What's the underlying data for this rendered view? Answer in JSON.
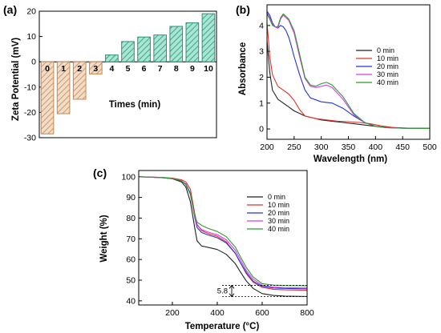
{
  "chart_data": [
    {
      "panel": "(a)",
      "type": "bar",
      "ylabel": "Zeta Potential (mV)",
      "xlabel": "Times (min)",
      "ylim": [
        -30,
        20
      ],
      "yticks": [
        -30,
        -20,
        -10,
        0,
        10,
        20
      ],
      "categories": [
        "0",
        "1",
        "2",
        "3",
        "4",
        "5",
        "6",
        "7",
        "8",
        "9",
        "10"
      ],
      "values": [
        -28.5,
        -20.5,
        -14.8,
        -4.8,
        2.7,
        8.0,
        9.8,
        10.6,
        14.0,
        15.4,
        19.0
      ],
      "colors": {
        "negative": "#c9874f",
        "negative_fill": "#f1dcc7",
        "positive": "#2f8f78",
        "positive_fill": "#a8e6d4"
      }
    },
    {
      "panel": "(b)",
      "type": "line",
      "xlabel": "Wavelength (nm)",
      "ylabel": "Absorbance",
      "xlim": [
        200,
        500
      ],
      "ylim": [
        -0.4,
        4.8
      ],
      "xticks": [
        200,
        250,
        300,
        350,
        400,
        450,
        500
      ],
      "yticks": [
        0,
        1,
        2,
        3,
        4
      ],
      "legend_position": "right",
      "series": [
        {
          "name": "0 min",
          "color": "#222222",
          "x": [
            200,
            205,
            210,
            220,
            230,
            240,
            250,
            270,
            300,
            320,
            340,
            360,
            380,
            400,
            420,
            450,
            500
          ],
          "y": [
            3.4,
            2.2,
            1.5,
            1.15,
            1.0,
            0.85,
            0.7,
            0.5,
            0.35,
            0.3,
            0.25,
            0.2,
            0.15,
            0.1,
            0.06,
            0.03,
            0.02
          ]
        },
        {
          "name": "10 min",
          "color": "#e8312a",
          "x": [
            200,
            202,
            205,
            210,
            220,
            230,
            240,
            250,
            260,
            270,
            290,
            310,
            330,
            350,
            370,
            390,
            410,
            430,
            460,
            500
          ],
          "y": [
            4.1,
            3.6,
            2.8,
            2.1,
            1.65,
            1.5,
            1.35,
            1.1,
            0.75,
            0.5,
            0.4,
            0.35,
            0.3,
            0.28,
            0.25,
            0.2,
            0.12,
            0.06,
            0.03,
            0.02
          ]
        },
        {
          "name": "20 min",
          "color": "#2233dd",
          "x": [
            200,
            205,
            210,
            215,
            220,
            225,
            230,
            235,
            240,
            245,
            250,
            260,
            270,
            280,
            300,
            320,
            340,
            360,
            380,
            400,
            420,
            450,
            500
          ],
          "y": [
            4.55,
            4.4,
            4.1,
            3.95,
            3.9,
            4.0,
            3.95,
            3.8,
            3.55,
            3.2,
            2.8,
            2.1,
            1.5,
            1.2,
            1.05,
            1.0,
            0.8,
            0.5,
            0.25,
            0.1,
            0.05,
            0.03,
            0.02
          ]
        },
        {
          "name": "30 min",
          "color": "#d63ee6",
          "x": [
            200,
            205,
            210,
            215,
            220,
            225,
            230,
            235,
            240,
            250,
            260,
            270,
            280,
            290,
            300,
            310,
            320,
            340,
            360,
            380,
            400,
            420,
            450,
            500
          ],
          "y": [
            4.5,
            4.3,
            4.05,
            3.95,
            3.9,
            4.25,
            4.4,
            4.3,
            4.2,
            3.7,
            2.8,
            1.95,
            1.65,
            1.6,
            1.65,
            1.7,
            1.6,
            1.15,
            0.55,
            0.25,
            0.1,
            0.05,
            0.03,
            0.02
          ]
        },
        {
          "name": "40 min",
          "color": "#2e9a2e",
          "x": [
            200,
            205,
            210,
            215,
            220,
            225,
            230,
            235,
            240,
            250,
            260,
            270,
            280,
            290,
            300,
            310,
            320,
            340,
            360,
            380,
            400,
            420,
            450,
            500
          ],
          "y": [
            4.45,
            4.25,
            4.0,
            3.95,
            3.95,
            4.3,
            4.45,
            4.35,
            4.25,
            3.8,
            2.9,
            2.0,
            1.7,
            1.65,
            1.75,
            1.8,
            1.7,
            1.25,
            0.6,
            0.25,
            0.1,
            0.05,
            0.03,
            0.02
          ]
        }
      ]
    },
    {
      "panel": "(c)",
      "type": "line",
      "xlabel": "Temperature (°C)",
      "ylabel": "Weight (%)",
      "xlim": [
        50,
        800
      ],
      "ylim": [
        38,
        103
      ],
      "xticks": [
        200,
        400,
        600,
        800
      ],
      "yticks": [
        40,
        50,
        60,
        70,
        80,
        90,
        100
      ],
      "legend_position": "right",
      "annotation": {
        "text": "5.8",
        "y_top": 47.5,
        "y_bottom": 42.0,
        "x": 500
      },
      "series": [
        {
          "name": "0 min",
          "color": "#222222",
          "x": [
            50,
            150,
            200,
            240,
            260,
            280,
            300,
            310,
            330,
            360,
            400,
            440,
            480,
            500,
            530,
            560,
            600,
            650,
            700,
            800
          ],
          "y": [
            100,
            99.6,
            99,
            97.5,
            95,
            88,
            75,
            69,
            66.5,
            65.8,
            64.8,
            62.5,
            58,
            54.5,
            49.5,
            46,
            43.5,
            42.6,
            42.3,
            42.1
          ]
        },
        {
          "name": "10 min",
          "color": "#e8312a",
          "x": [
            50,
            150,
            200,
            240,
            260,
            280,
            300,
            310,
            330,
            360,
            400,
            440,
            480,
            500,
            530,
            560,
            600,
            650,
            700,
            800
          ],
          "y": [
            100,
            99.7,
            99.3,
            98.5,
            97.5,
            94,
            82,
            77,
            74,
            72.5,
            71.2,
            68.5,
            63,
            59,
            53,
            49,
            46.5,
            45.6,
            45.3,
            45.1
          ]
        },
        {
          "name": "20 min",
          "color": "#2233dd",
          "x": [
            50,
            150,
            200,
            240,
            260,
            280,
            300,
            310,
            330,
            360,
            400,
            440,
            480,
            500,
            530,
            560,
            600,
            650,
            700,
            800
          ],
          "y": [
            100,
            99.6,
            99.1,
            98,
            96.5,
            92,
            80,
            75.5,
            73,
            71.8,
            70.5,
            68,
            63,
            59,
            53.5,
            49.5,
            47,
            46.2,
            46,
            45.8
          ]
        },
        {
          "name": "30 min",
          "color": "#d63ee6",
          "x": [
            50,
            150,
            200,
            240,
            260,
            280,
            300,
            310,
            330,
            360,
            400,
            440,
            480,
            500,
            530,
            560,
            600,
            650,
            700,
            800
          ],
          "y": [
            100,
            99.6,
            99.1,
            98,
            96.2,
            91.5,
            80.5,
            76.5,
            74.5,
            73.2,
            72,
            69.5,
            64.5,
            60.5,
            54.5,
            50.5,
            47.5,
            46.7,
            46.4,
            46.2
          ]
        },
        {
          "name": "40 min",
          "color": "#2e9a2e",
          "x": [
            50,
            150,
            200,
            240,
            260,
            280,
            300,
            310,
            330,
            360,
            400,
            440,
            480,
            500,
            530,
            560,
            600,
            650,
            700,
            800
          ],
          "y": [
            100,
            99.6,
            99.1,
            98,
            96.2,
            91.5,
            81,
            78,
            76.5,
            75,
            73.5,
            71,
            66,
            62,
            56,
            51.5,
            48.3,
            47.6,
            47.4,
            47.3
          ]
        }
      ]
    }
  ]
}
